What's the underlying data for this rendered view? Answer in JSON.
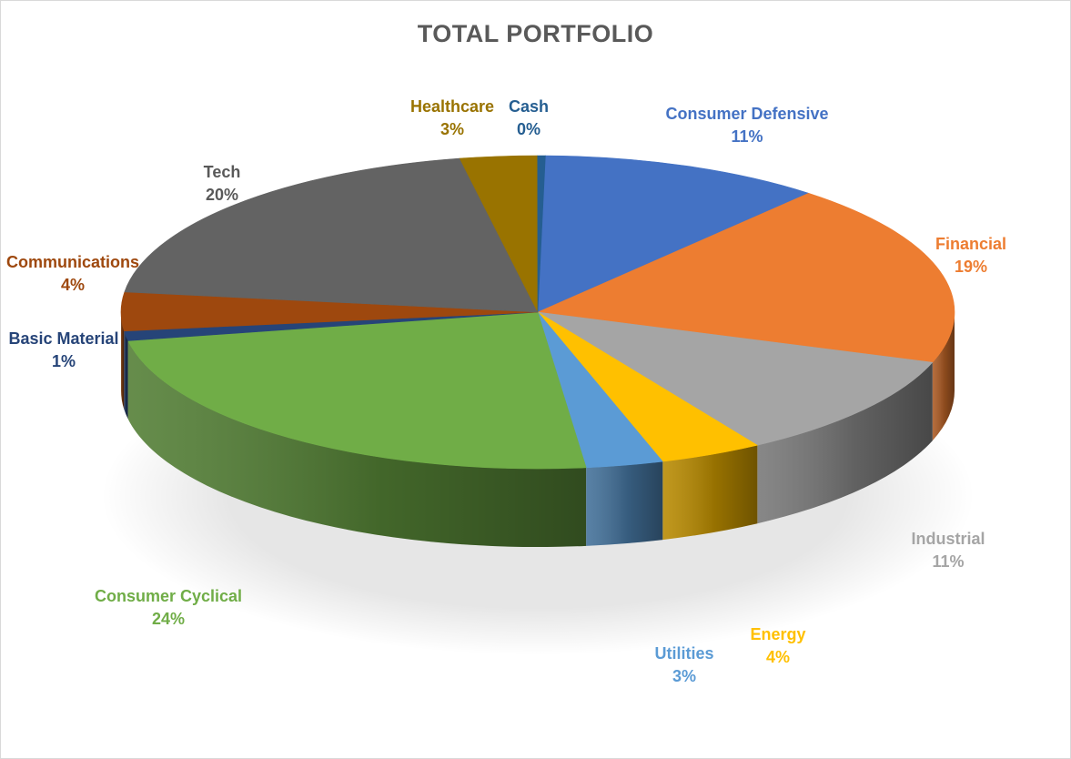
{
  "chart_data": {
    "type": "pie",
    "title": "TOTAL PORTFOLIO",
    "slices": [
      {
        "name": "Consumer Defensive",
        "pct_label": "11%",
        "value": 11,
        "color": "#4472C4"
      },
      {
        "name": "Financial",
        "pct_label": "19%",
        "value": 19,
        "color": "#ED7D31"
      },
      {
        "name": "Industrial",
        "pct_label": "11%",
        "value": 11,
        "color": "#A5A5A5"
      },
      {
        "name": "Energy",
        "pct_label": "4%",
        "value": 4,
        "color": "#FFC000"
      },
      {
        "name": "Utilities",
        "pct_label": "3%",
        "value": 3,
        "color": "#5B9BD5"
      },
      {
        "name": "Consumer Cyclical",
        "pct_label": "24%",
        "value": 24,
        "color": "#70AD47"
      },
      {
        "name": "Basic Material",
        "pct_label": "1%",
        "value": 1,
        "color": "#264478"
      },
      {
        "name": "Communications",
        "pct_label": "4%",
        "value": 4,
        "color": "#9E480E"
      },
      {
        "name": "Tech",
        "pct_label": "20%",
        "value": 20,
        "color": "#636363"
      },
      {
        "name": "Healthcare",
        "pct_label": "3%",
        "value": 3,
        "color": "#997300"
      },
      {
        "name": "Cash",
        "pct_label": "0%",
        "value": 0.3,
        "color": "#255E91"
      }
    ],
    "label_colors": {
      "Consumer Defensive": "#4472C4",
      "Financial": "#ED7D31",
      "Industrial": "#A5A5A5",
      "Energy": "#FFC000",
      "Utilities": "#5B9BD5",
      "Consumer Cyclical": "#70AD47",
      "Basic Material": "#264478",
      "Communications": "#9E480E",
      "Tech": "#595959",
      "Healthcare": "#997300",
      "Cash": "#255E91"
    },
    "style": "3d-tilted",
    "legend": "none"
  }
}
